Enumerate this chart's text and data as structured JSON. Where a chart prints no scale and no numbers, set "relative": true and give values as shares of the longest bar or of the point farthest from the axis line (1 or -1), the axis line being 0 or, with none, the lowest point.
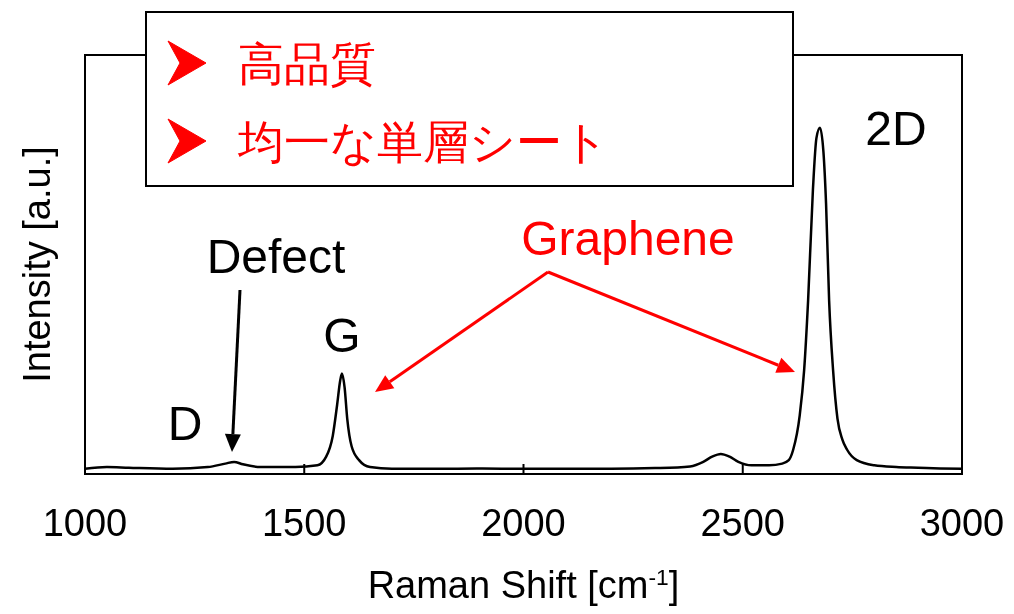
{
  "chart_data": {
    "type": "line",
    "relative": true,
    "xlabel": "Raman Shift [cm$^{-1}$]",
    "ylabel": "Intensity [a.u.]",
    "xlim": [
      1000,
      3000
    ],
    "xticks": [
      1000,
      1500,
      2000,
      2500,
      3000
    ],
    "x": [
      1000,
      1050,
      1100,
      1200,
      1280,
      1320,
      1340,
      1360,
      1400,
      1480,
      1530,
      1550,
      1565,
      1575,
      1582,
      1586,
      1592,
      1598,
      1608,
      1625,
      1650,
      1700,
      1800,
      1900,
      2000,
      2100,
      2200,
      2300,
      2380,
      2410,
      2430,
      2450,
      2470,
      2490,
      2520,
      2560,
      2590,
      2605,
      2615,
      2630,
      2640,
      2649,
      2660,
      2668,
      2676,
      2684,
      2690,
      2697,
      2706,
      2716,
      2727,
      2738,
      2760,
      2800,
      2850,
      2900,
      2950,
      3000
    ],
    "series": [
      {
        "color": "#000000",
        "values": [
          0.015,
          0.02,
          0.018,
          0.015,
          0.02,
          0.03,
          0.035,
          0.028,
          0.02,
          0.02,
          0.025,
          0.05,
          0.11,
          0.2,
          0.27,
          0.29,
          0.25,
          0.16,
          0.08,
          0.04,
          0.02,
          0.015,
          0.015,
          0.016,
          0.015,
          0.015,
          0.015,
          0.017,
          0.022,
          0.035,
          0.05,
          0.058,
          0.05,
          0.035,
          0.025,
          0.025,
          0.03,
          0.04,
          0.07,
          0.17,
          0.3,
          0.5,
          0.82,
          0.97,
          1,
          0.93,
          0.78,
          0.5,
          0.3,
          0.16,
          0.1,
          0.07,
          0.04,
          0.025,
          0.02,
          0.018,
          0.016,
          0.015
        ]
      }
    ],
    "annotations": [
      "高品質",
      "均一な単層シート",
      "D",
      "Defect",
      "G",
      "2D",
      "Graphene"
    ]
  }
}
